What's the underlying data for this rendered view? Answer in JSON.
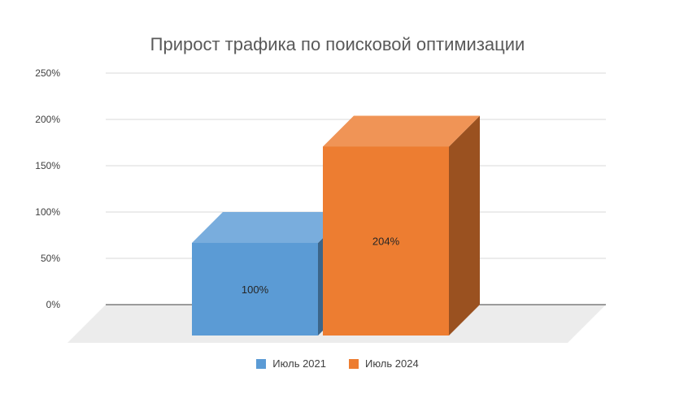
{
  "chart_data": {
    "type": "bar",
    "style": "3d-column",
    "title": "Прирост трафика по поисковой оптимизации",
    "xlabel": "",
    "ylabel": "",
    "ylim": [
      0,
      250
    ],
    "y_ticks": [
      "0%",
      "50%",
      "100%",
      "150%",
      "200%",
      "250%"
    ],
    "grid": true,
    "legend_position": "bottom",
    "series": [
      {
        "name": "Июль 2021",
        "value": 100,
        "label": "100%",
        "color": "#5b9bd5"
      },
      {
        "name": "Июль 2024",
        "value": 204,
        "label": "204%",
        "color": "#ed7d31"
      }
    ]
  }
}
